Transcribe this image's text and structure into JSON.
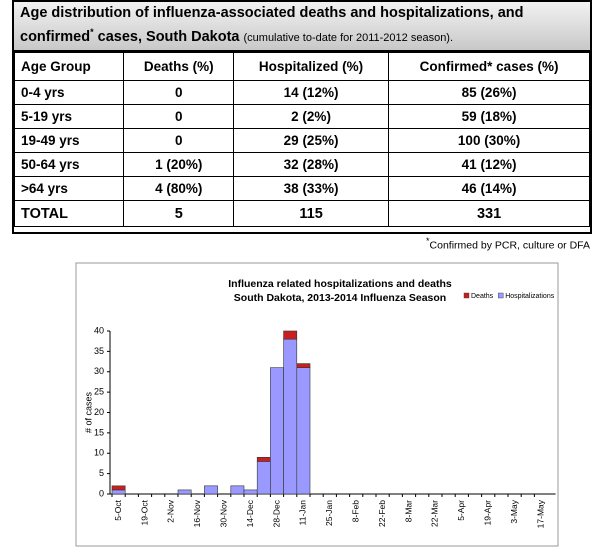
{
  "header": {
    "title": [
      "Age distribution of influenza-associated deaths and hospitalizations, and confirmed",
      "*",
      " cases, South Dakota",
      "(cumulative to-date for 2011-2012 season)."
    ]
  },
  "table": {
    "header": [
      "Age Group",
      "Deaths (%)",
      "Hospitalized (%)",
      "Confirmed* cases (%)"
    ],
    "rows": [
      [
        "0-4 yrs",
        "0",
        "14 (12%)",
        "85 (26%)"
      ],
      [
        "5-19 yrs",
        "0",
        "2 (2%)",
        "59 (18%)"
      ],
      [
        "19-49 yrs",
        "0",
        "29 (25%)",
        "100 (30%)"
      ],
      [
        "50-64 yrs",
        "1 (20%)",
        "32 (28%)",
        "41 (12%)"
      ],
      [
        ">64 yrs",
        "4 (80%)",
        "38 (33%)",
        "46 (14%)"
      ],
      [
        "TOTAL",
        "5",
        "115",
        "331"
      ]
    ]
  },
  "footnote": [
    "*",
    "Confirmed by PCR, culture or DFA"
  ],
  "chart_data": {
    "type": "bar",
    "stacked": true,
    "title": [
      "Influenza related hospitalizations and deaths",
      "South Dakota, 2013-2014 Influenza Season"
    ],
    "ylabel": "# of cases",
    "categories": [
      "5-Oct",
      null,
      "19-Oct",
      null,
      "2-Nov",
      null,
      "16-Nov",
      null,
      "30-Nov",
      null,
      "14-Dec",
      null,
      "28-Dec",
      null,
      "11-Jan",
      null,
      "25-Jan",
      null,
      "8-Feb",
      null,
      "22-Feb",
      null,
      "8-Mar",
      null,
      "22-Mar",
      null,
      "5-Apr",
      null,
      "19-Apr",
      null,
      "3-May",
      null,
      "17-May"
    ],
    "series": [
      {
        "name": "Deaths",
        "color": "#c8201e",
        "values": [
          1,
          0,
          0,
          0,
          0,
          0,
          0,
          0,
          0,
          0,
          0,
          1,
          0,
          2,
          1,
          0,
          0,
          0,
          0,
          0,
          0,
          0,
          0,
          0,
          0,
          0,
          0,
          0,
          0,
          0,
          0,
          0,
          0
        ]
      },
      {
        "name": "Hospitalizations",
        "color": "#9999ff",
        "values": [
          1,
          0,
          0,
          0,
          0,
          1,
          0,
          2,
          0,
          2,
          1,
          8,
          31,
          38,
          31,
          0,
          0,
          0,
          0,
          0,
          0,
          0,
          0,
          0,
          0,
          0,
          0,
          0,
          0,
          0,
          0,
          0,
          0
        ]
      }
    ],
    "stack_order": [
      1,
      0
    ],
    "ylim": [
      0,
      40
    ],
    "yticks": [
      0,
      5,
      10,
      15,
      20,
      25,
      30,
      35,
      40
    ],
    "legend": "top-right"
  }
}
